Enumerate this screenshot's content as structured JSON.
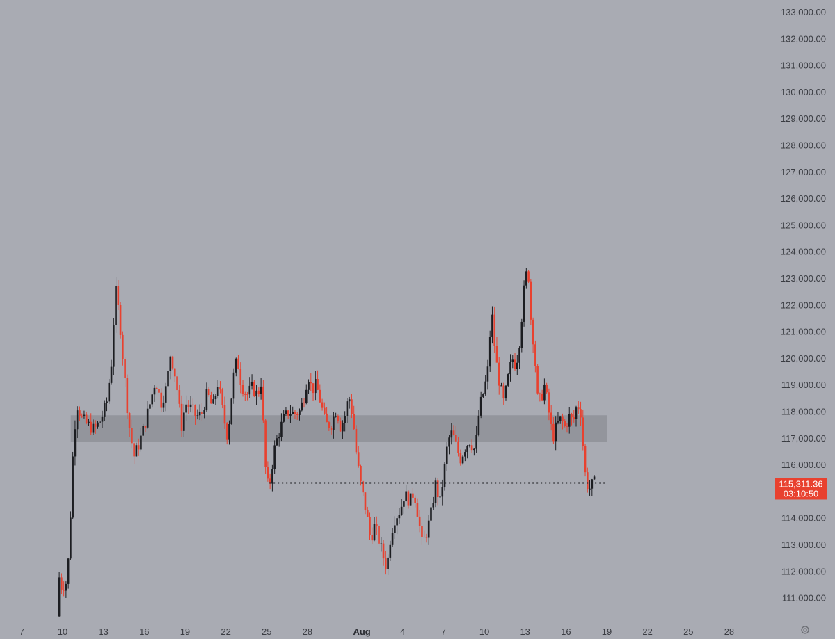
{
  "chart_data": {
    "type": "candlestick",
    "y_axis": {
      "min": 110000,
      "max": 133000,
      "ticks": [
        "133,000.00",
        "132,000.00",
        "131,000.00",
        "130,000.00",
        "129,000.00",
        "128,000.00",
        "127,000.00",
        "126,000.00",
        "125,000.00",
        "124,000.00",
        "123,000.00",
        "122,000.00",
        "121,000.00",
        "120,000.00",
        "119,000.00",
        "118,000.00",
        "117,000.00",
        "116,000.00",
        "115,000.00",
        "114,000.00",
        "113,000.00",
        "112,000.00",
        "111,000.00"
      ]
    },
    "x_axis": {
      "ticks": [
        {
          "label": "7",
          "day": 7
        },
        {
          "label": "10",
          "day": 10
        },
        {
          "label": "13",
          "day": 13
        },
        {
          "label": "16",
          "day": 16
        },
        {
          "label": "19",
          "day": 19
        },
        {
          "label": "22",
          "day": 22
        },
        {
          "label": "25",
          "day": 25
        },
        {
          "label": "28",
          "day": 28
        },
        {
          "label": "Aug",
          "day": 32,
          "bold": true
        },
        {
          "label": "4",
          "day": 35
        },
        {
          "label": "7",
          "day": 38
        },
        {
          "label": "10",
          "day": 41
        },
        {
          "label": "13",
          "day": 44
        },
        {
          "label": "16",
          "day": 47
        },
        {
          "label": "19",
          "day": 50
        },
        {
          "label": "22",
          "day": 53
        },
        {
          "label": "25",
          "day": 56
        },
        {
          "label": "28",
          "day": 59
        }
      ]
    },
    "zone": {
      "low": 116850,
      "high": 117850,
      "from_day": 10.6,
      "to_day": 50
    },
    "level_line": {
      "value": 115311.36,
      "from_day": 25.2,
      "to_day": 50
    },
    "current_price": {
      "value": "115,311.36",
      "countdown": "03:10:50"
    },
    "colors": {
      "up": "#1c1d21",
      "down": "#e8412f",
      "zone": "#8f9198",
      "price_bg": "#e8412f",
      "level": "#1c1d21",
      "background": "#a9abb3"
    },
    "anchors": [
      [
        9.75,
        110300
      ],
      [
        9.9,
        111800
      ],
      [
        10.1,
        111400
      ],
      [
        10.5,
        111600
      ],
      [
        10.7,
        113500
      ],
      [
        10.95,
        116700
      ],
      [
        11.2,
        118300
      ],
      [
        11.6,
        117700
      ],
      [
        12.0,
        117500
      ],
      [
        12.5,
        117300
      ],
      [
        13.0,
        117700
      ],
      [
        13.4,
        118300
      ],
      [
        13.75,
        119800
      ],
      [
        14.05,
        122600
      ],
      [
        14.35,
        121500
      ],
      [
        14.6,
        120000
      ],
      [
        15.0,
        117700
      ],
      [
        15.4,
        116300
      ],
      [
        15.8,
        116800
      ],
      [
        16.2,
        117500
      ],
      [
        16.6,
        118300
      ],
      [
        17.0,
        119200
      ],
      [
        17.4,
        118300
      ],
      [
        17.8,
        118900
      ],
      [
        18.1,
        120200
      ],
      [
        18.5,
        119200
      ],
      [
        18.9,
        117400
      ],
      [
        19.2,
        118300
      ],
      [
        19.6,
        118100
      ],
      [
        20.0,
        117800
      ],
      [
        20.4,
        117900
      ],
      [
        20.8,
        118700
      ],
      [
        21.2,
        118100
      ],
      [
        21.6,
        119100
      ],
      [
        22.0,
        117800
      ],
      [
        22.3,
        117000
      ],
      [
        22.7,
        119200
      ],
      [
        23.0,
        120000
      ],
      [
        23.3,
        119000
      ],
      [
        23.7,
        118600
      ],
      [
        24.1,
        118900
      ],
      [
        24.5,
        118600
      ],
      [
        24.75,
        119100
      ],
      [
        24.95,
        117200
      ],
      [
        25.15,
        115200
      ],
      [
        25.4,
        115300
      ],
      [
        25.7,
        116500
      ],
      [
        26.0,
        117100
      ],
      [
        26.4,
        117700
      ],
      [
        26.8,
        118000
      ],
      [
        27.2,
        117900
      ],
      [
        27.6,
        118000
      ],
      [
        27.9,
        118500
      ],
      [
        28.2,
        119400
      ],
      [
        28.5,
        118800
      ],
      [
        28.8,
        119000
      ],
      [
        29.1,
        118400
      ],
      [
        29.5,
        117500
      ],
      [
        29.9,
        117500
      ],
      [
        30.3,
        118100
      ],
      [
        30.6,
        117400
      ],
      [
        30.9,
        117800
      ],
      [
        31.2,
        118600
      ],
      [
        31.5,
        117800
      ],
      [
        31.8,
        116200
      ],
      [
        32.1,
        115200
      ],
      [
        32.5,
        114200
      ],
      [
        32.8,
        113200
      ],
      [
        33.1,
        113700
      ],
      [
        33.4,
        113200
      ],
      [
        33.7,
        112600
      ],
      [
        34.0,
        112100
      ],
      [
        34.3,
        113400
      ],
      [
        34.6,
        114000
      ],
      [
        35.0,
        114300
      ],
      [
        35.3,
        114900
      ],
      [
        35.7,
        114600
      ],
      [
        36.0,
        115000
      ],
      [
        36.3,
        114100
      ],
      [
        36.6,
        113000
      ],
      [
        36.9,
        113400
      ],
      [
        37.2,
        114000
      ],
      [
        37.6,
        115300
      ],
      [
        37.9,
        114500
      ],
      [
        38.2,
        115700
      ],
      [
        38.5,
        116900
      ],
      [
        38.8,
        117200
      ],
      [
        39.1,
        116700
      ],
      [
        39.4,
        116200
      ],
      [
        39.8,
        116700
      ],
      [
        40.1,
        116900
      ],
      [
        40.5,
        116500
      ],
      [
        40.8,
        118100
      ],
      [
        41.1,
        118700
      ],
      [
        41.4,
        119400
      ],
      [
        41.7,
        121800
      ],
      [
        42.0,
        120000
      ],
      [
        42.3,
        119000
      ],
      [
        42.6,
        118300
      ],
      [
        42.9,
        119200
      ],
      [
        43.2,
        120000
      ],
      [
        43.5,
        119700
      ],
      [
        43.8,
        120800
      ],
      [
        44.05,
        122400
      ],
      [
        44.3,
        123300
      ],
      [
        44.45,
        123000
      ],
      [
        44.6,
        121300
      ],
      [
        44.85,
        120400
      ],
      [
        45.05,
        118500
      ],
      [
        45.3,
        118400
      ],
      [
        45.6,
        119000
      ],
      [
        45.9,
        118000
      ],
      [
        46.2,
        117000
      ],
      [
        46.5,
        117500
      ],
      [
        46.8,
        117700
      ],
      [
        47.1,
        117400
      ],
      [
        47.4,
        117800
      ],
      [
        47.7,
        117600
      ],
      [
        48.0,
        118300
      ],
      [
        48.3,
        117900
      ],
      [
        48.5,
        115900
      ],
      [
        48.7,
        115300
      ],
      [
        48.9,
        115100
      ],
      [
        49.2,
        115311
      ]
    ]
  }
}
